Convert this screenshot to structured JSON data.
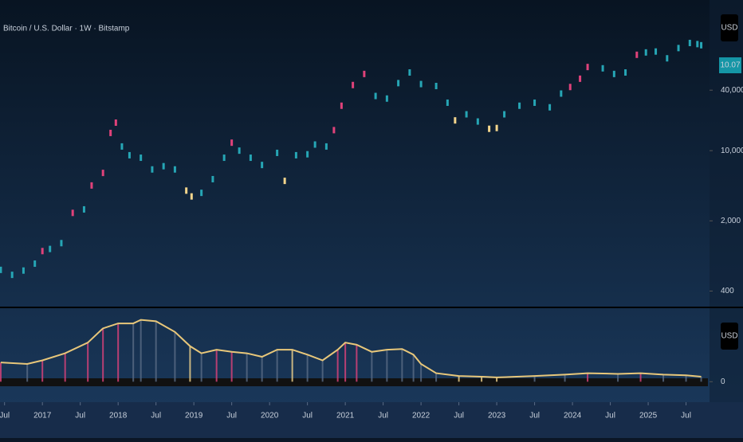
{
  "chart_data": [
    {
      "type": "candle",
      "title": "Bitcoin / U.S. Dollar · 1W · Bitstamp",
      "y_axis_label": "USD",
      "price_label": "10.07",
      "log_scale": true,
      "xlim": [
        2016.44,
        2025.81
      ],
      "ylim": [
        280,
        316000
      ],
      "yticks": [
        {
          "value": 40000,
          "label": "40,000"
        },
        {
          "value": 10000,
          "label": "10,000"
        },
        {
          "value": 2000,
          "label": "2,000"
        },
        400
      ],
      "x": [
        2016.45,
        2016.6,
        2016.75,
        2016.9,
        2017.0,
        2017.1,
        2017.25,
        2017.4,
        2017.55,
        2017.65,
        2017.8,
        2017.9,
        2017.97,
        2018.05,
        2018.15,
        2018.3,
        2018.45,
        2018.6,
        2018.75,
        2018.9,
        2018.97,
        2019.1,
        2019.25,
        2019.4,
        2019.5,
        2019.6,
        2019.75,
        2019.9,
        2020.1,
        2020.2,
        2020.35,
        2020.5,
        2020.6,
        2020.75,
        2020.85,
        2020.95,
        2021.1,
        2021.25,
        2021.4,
        2021.55,
        2021.7,
        2021.85,
        2022.0,
        2022.2,
        2022.35,
        2022.45,
        2022.6,
        2022.75,
        2022.9,
        2023.0,
        2023.1,
        2023.3,
        2023.5,
        2023.7,
        2023.85,
        2023.97,
        2024.1,
        2024.2,
        2024.4,
        2024.55,
        2024.7,
        2024.85,
        2024.97,
        2025.1,
        2025.25,
        2025.4,
        2025.55,
        2025.65,
        2025.7
      ],
      "values": [
        650,
        580,
        640,
        750,
        1000,
        1050,
        1200,
        2400,
        2600,
        4500,
        6000,
        15000,
        19000,
        11000,
        9000,
        8500,
        6500,
        7000,
        6500,
        4000,
        3500,
        3800,
        5200,
        8500,
        12000,
        10000,
        8500,
        7200,
        9500,
        5000,
        9000,
        9200,
        11500,
        11000,
        16000,
        28000,
        45000,
        58000,
        35000,
        33000,
        47000,
        60000,
        46000,
        44000,
        30000,
        20000,
        23000,
        19500,
        16500,
        16800,
        23000,
        28000,
        30000,
        27000,
        37000,
        43000,
        52000,
        68000,
        66000,
        58000,
        60000,
        90000,
        95000,
        97000,
        83000,
        105000,
        118000,
        115000,
        112000
      ],
      "colors": [
        "#26a6b5",
        "#26a6b5",
        "#26a6b5",
        "#26a6b5",
        "#e0427a",
        "#26a6b5",
        "#26a6b5",
        "#e0427a",
        "#26a6b5",
        "#e0427a",
        "#e0427a",
        "#e0427a",
        "#e0427a",
        "#26a6b5",
        "#26a6b5",
        "#26a6b5",
        "#26a6b5",
        "#26a6b5",
        "#26a6b5",
        "#f3d58c",
        "#f3d58c",
        "#26a6b5",
        "#26a6b5",
        "#26a6b5",
        "#e0427a",
        "#26a6b5",
        "#26a6b5",
        "#26a6b5",
        "#26a6b5",
        "#f3d58c",
        "#26a6b5",
        "#26a6b5",
        "#26a6b5",
        "#26a6b5",
        "#e0427a",
        "#e0427a",
        "#e0427a",
        "#e0427a",
        "#26a6b5",
        "#26a6b5",
        "#26a6b5",
        "#26a6b5",
        "#26a6b5",
        "#26a6b5",
        "#26a6b5",
        "#f3d58c",
        "#26a6b5",
        "#26a6b5",
        "#f3d58c",
        "#f3d58c",
        "#26a6b5",
        "#26a6b5",
        "#26a6b5",
        "#26a6b5",
        "#26a6b5",
        "#e0427a",
        "#e0427a",
        "#e0427a",
        "#26a6b5",
        "#26a6b5",
        "#26a6b5",
        "#e0427a",
        "#26a6b5",
        "#26a6b5",
        "#26a6b5",
        "#26a6b5",
        "#26a6b5",
        "#26a6b5",
        "#26a6b5"
      ]
    },
    {
      "type": "line",
      "y_axis_label": "USD",
      "color": "#e8c77a",
      "xlim": [
        2016.44,
        2025.81
      ],
      "ylim": [
        -12,
        100
      ],
      "yticks": [
        0
      ],
      "xticks": [
        {
          "value": 2016.5,
          "label": "Jul"
        },
        2017,
        {
          "value": 2017.5,
          "label": "Jul"
        },
        2018,
        {
          "value": 2018.5,
          "label": "Jul"
        },
        2019,
        {
          "value": 2019.5,
          "label": "Jul"
        },
        2020,
        {
          "value": 2020.5,
          "label": "Jul"
        },
        2021,
        {
          "value": 2021.5,
          "label": "Jul"
        },
        2022,
        {
          "value": 2022.5,
          "label": "Jul"
        },
        2023,
        {
          "value": 2023.5,
          "label": "Jul"
        },
        2024,
        {
          "value": 2024.5,
          "label": "Jul"
        },
        2025,
        {
          "value": 2025.5,
          "label": "Jul"
        }
      ],
      "x": [
        2016.45,
        2016.8,
        2017.0,
        2017.3,
        2017.6,
        2017.8,
        2018.0,
        2018.2,
        2018.3,
        2018.5,
        2018.75,
        2018.95,
        2019.1,
        2019.3,
        2019.5,
        2019.7,
        2019.9,
        2020.1,
        2020.3,
        2020.5,
        2020.7,
        2020.9,
        2021.0,
        2021.15,
        2021.35,
        2021.55,
        2021.75,
        2021.9,
        2022.0,
        2022.2,
        2022.5,
        2022.8,
        2023.0,
        2023.5,
        2023.9,
        2024.2,
        2024.6,
        2024.9,
        2025.2,
        2025.5,
        2025.7
      ],
      "values": [
        27,
        25,
        30,
        40,
        55,
        75,
        82,
        82,
        87,
        85,
        70,
        50,
        40,
        45,
        42,
        40,
        35,
        45,
        45,
        38,
        30,
        45,
        55,
        52,
        42,
        45,
        46,
        38,
        25,
        12,
        8,
        7,
        6,
        8,
        10,
        12,
        11,
        12,
        10,
        9,
        7
      ],
      "bar_colors": [
        "#e0427a",
        "#5a6b85",
        "#e0427a",
        "#e0427a",
        "#e0427a",
        "#e0427a",
        "#e0427a",
        "#5a6b85",
        "#5a6b85",
        "#5a6b85",
        "#5a6b85",
        "#f3d58c",
        "#5a6b85",
        "#e0427a",
        "#e0427a",
        "#5a6b85",
        "#5a6b85",
        "#5a6b85",
        "#f3d58c",
        "#5a6b85",
        "#5a6b85",
        "#e0427a",
        "#e0427a",
        "#e0427a",
        "#5a6b85",
        "#5a6b85",
        "#5a6b85",
        "#5a6b85",
        "#5a6b85",
        "#5a6b85",
        "#f3d58c",
        "#f3d58c",
        "#f3d58c",
        "#5a6b85",
        "#5a6b85",
        "#e0427a",
        "#5a6b85",
        "#e0427a",
        "#5a6b85",
        "#5a6b85",
        "#5a6b85"
      ]
    }
  ]
}
